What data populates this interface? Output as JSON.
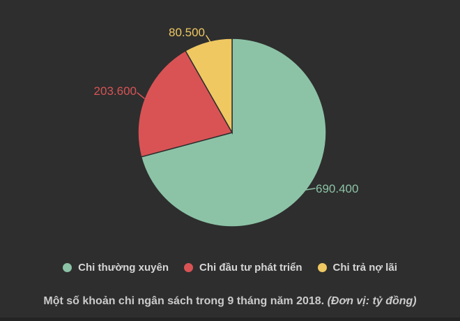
{
  "page": {
    "background_color": "#2e2e2e",
    "bottom_strip_color": "#242424"
  },
  "chart_data": {
    "type": "pie",
    "title": "Một số khoản chi ngân sách trong 9 tháng năm 2018.",
    "title_note": "(Đơn vị: tỷ đồng)",
    "unit": "tỷ đồng",
    "legend_position": "bottom",
    "start_angle": "top",
    "direction": "clockwise",
    "total": 974500,
    "slices": [
      {
        "label": "Chi thường xuyên",
        "value": 690400,
        "display_value": "690.400",
        "color": "#8cc3a6"
      },
      {
        "label": "Chi đầu tư phát triển",
        "value": 203600,
        "display_value": "203.600",
        "color": "#d95355"
      },
      {
        "label": "Chi trả nợ lãi",
        "value": 80500,
        "display_value": "80.500",
        "color": "#efc862"
      }
    ],
    "text_colors": {
      "legend": "#d6d6d6",
      "caption": "#cbcbcb"
    }
  }
}
